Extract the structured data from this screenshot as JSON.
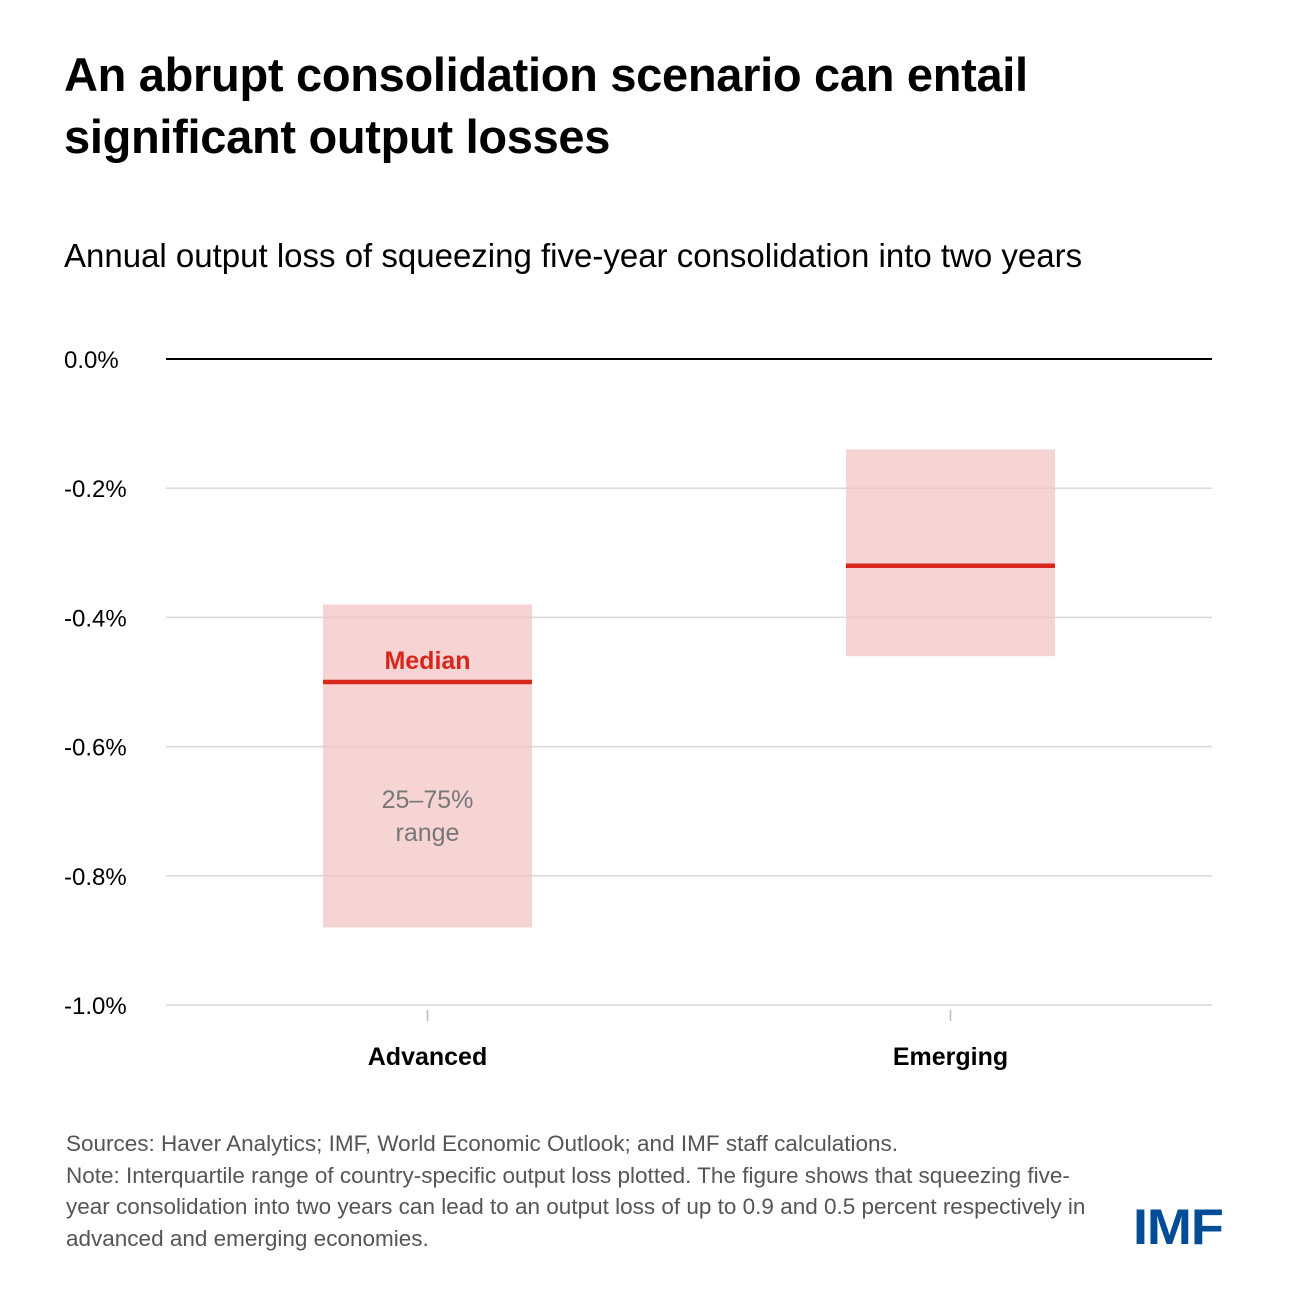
{
  "title": "An abrupt consolidation scenario can entail significant output losses",
  "subtitle": "Annual output loss of squeezing five-year consolidation into two years",
  "chart_data": {
    "type": "range-bar",
    "title": "Annual output loss of squeezing five-year consolidation into two years",
    "categories": [
      "Advanced",
      "Emerging"
    ],
    "series": [
      {
        "name": "25–75% range",
        "low": [
          -0.88,
          -0.46
        ],
        "high": [
          -0.38,
          -0.14
        ]
      },
      {
        "name": "Median",
        "values": [
          -0.5,
          -0.32
        ]
      }
    ],
    "yticks": [
      0.0,
      -0.2,
      -0.4,
      -0.6,
      -0.8,
      -1.0
    ],
    "ytick_labels": [
      "0.0%",
      "-0.2%",
      "-0.4%",
      "-0.6%",
      "-0.8%",
      "-1.0%"
    ],
    "ylim": [
      -1.0,
      0.0
    ],
    "grid": true,
    "annotations": {
      "median": "Median",
      "range_line1": "25–75%",
      "range_line2": "range"
    },
    "colors": {
      "range": "#f4c4c3",
      "median": "#d9261c",
      "grid": "#d9d9d9",
      "zero": "#000000"
    }
  },
  "sources": "Sources: Haver Analytics; IMF, World Economic Outlook; and IMF staff calculations.",
  "note": "Note: Interquartile range of country-specific output loss plotted. The figure shows that squeezing five-year consolidation into two years can lead to an output loss of up to 0.9 and 0.5 percent respectively in advanced and emerging economies.",
  "logo": "IMF"
}
